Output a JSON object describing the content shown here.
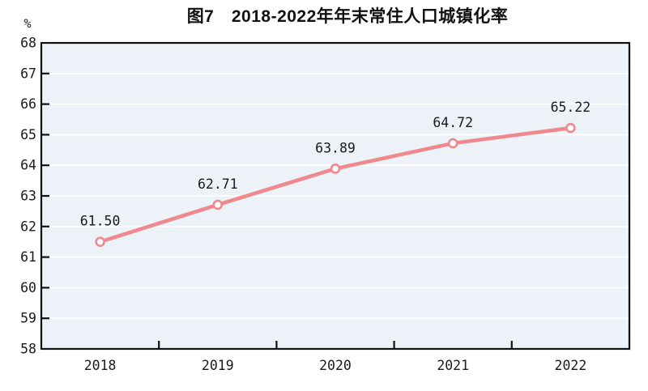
{
  "figure": {
    "title": "图7　2018-2022年年末常住人口城镇化率",
    "unit_label": "%"
  },
  "chart_data": {
    "type": "line",
    "title": "图7　2018-2022年年末常住人口城镇化率",
    "categories": [
      "2018",
      "2019",
      "2020",
      "2021",
      "2022"
    ],
    "values": [
      61.5,
      62.71,
      63.89,
      64.72,
      65.22
    ],
    "point_labels": [
      "61.50",
      "62.71",
      "63.89",
      "64.72",
      "65.22"
    ],
    "xlabel": "",
    "ylabel": "%",
    "ylim": [
      58,
      68
    ],
    "ytick_step": 1,
    "yticks": [
      58,
      59,
      60,
      61,
      62,
      63,
      64,
      65,
      66,
      67,
      68
    ],
    "grid": "horizontal",
    "legend": "none",
    "colors": {
      "line": "#ef898d",
      "marker_fill": "#ffffff",
      "marker_stroke": "#ef898d",
      "plot_bg": "#ecf2f7",
      "grid": "#ffffff",
      "frame": "#111111",
      "text": "#1a1a1a"
    }
  }
}
